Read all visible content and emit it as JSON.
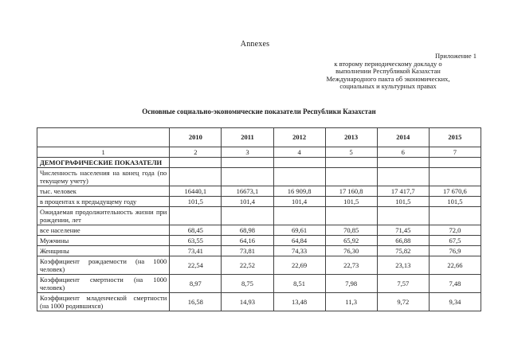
{
  "colors": {
    "page_background": "#ffffff",
    "text": "#1b1b1b",
    "table_border": "#414141"
  },
  "header": {
    "annexes": "Annexes",
    "note_title": "Приложение 1",
    "note_lines": [
      "к второму периодическому докладу о",
      "выполнении Республикой Казахстан",
      "Международного пакта об экономических,",
      "социальных и культурных правах"
    ]
  },
  "table": {
    "title": "Основные социально-экономические показатели Республики Казахстан",
    "year_columns": [
      "2010",
      "2011",
      "2012",
      "2013",
      "2014",
      "2015"
    ],
    "numbering": [
      "1",
      "2",
      "3",
      "4",
      "5",
      "6",
      "7"
    ],
    "rows": [
      {
        "label": "ДЕМОГРАФИЧЕСКИЕ ПОКАЗАТЕЛИ",
        "bold": true,
        "values": [
          "",
          "",
          "",
          "",
          "",
          ""
        ]
      },
      {
        "label": "Численность населения на конец года (по текущему учету)",
        "bold": false,
        "values": [
          "",
          "",
          "",
          "",
          "",
          ""
        ]
      },
      {
        "label": "тыс. человек",
        "bold": false,
        "values": [
          "16440,1",
          "16673,1",
          "16 909,8",
          "17 160,8",
          "17 417,7",
          "17 670,6"
        ]
      },
      {
        "label": "в процентах к предыдущему году",
        "bold": false,
        "values": [
          "101,5",
          "101,4",
          "101,4",
          "101,5",
          "101,5",
          "101,5"
        ]
      },
      {
        "label": "Ожидаемая продолжительность жизни при рождении, лет",
        "bold": false,
        "values": [
          "",
          "",
          "",
          "",
          "",
          ""
        ]
      },
      {
        "label": "все население",
        "bold": false,
        "values": [
          "68,45",
          "68,98",
          "69,61",
          "70,85",
          "71,45",
          "72,0"
        ]
      },
      {
        "label": "Мужчины",
        "bold": false,
        "values": [
          "63,55",
          "64,16",
          "64,84",
          "65,92",
          "66,88",
          "67,5"
        ]
      },
      {
        "label": "Женщины",
        "bold": false,
        "values": [
          "73,41",
          "73,81",
          "74,33",
          "76,30",
          "75,82",
          "76,9"
        ]
      },
      {
        "label": "Коэффициент рождаемости (на 1000 человек)",
        "bold": false,
        "values": [
          "22,54",
          "22,52",
          "22,69",
          "22,73",
          "23,13",
          "22,66"
        ]
      },
      {
        "label": "Коэффициент смертности (на 1000 человек)",
        "bold": false,
        "values": [
          "8,97",
          "8,75",
          "8,51",
          "7,98",
          "7,57",
          "7,48"
        ]
      },
      {
        "label": "Коэффициент младенческой смертности (на 1000 родившихся)",
        "bold": false,
        "values": [
          "16,58",
          "14,93",
          "13,48",
          "11,3",
          "9,72",
          "9,34"
        ]
      }
    ]
  }
}
